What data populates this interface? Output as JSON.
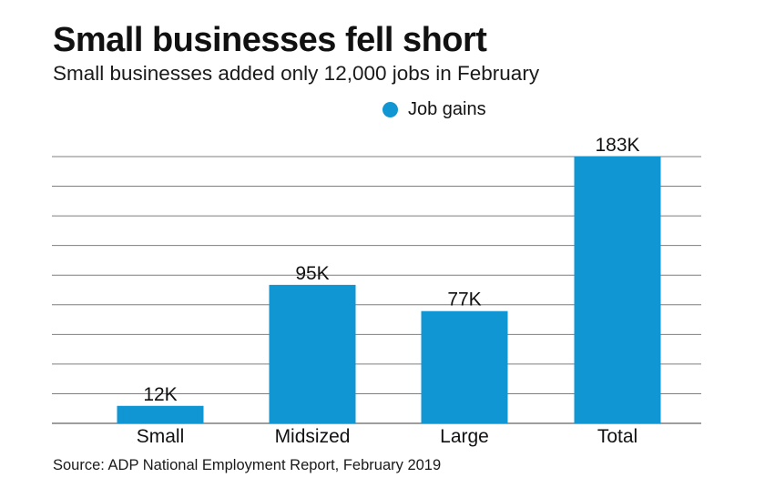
{
  "title": "Small businesses fell short",
  "subtitle": "Small businesses added only 12,000 jobs in February",
  "source": "Source: ADP National Employment Report, February 2019",
  "colors": {
    "bar": "#0f96d3",
    "grid": "#7f7f7f",
    "text": "#111111"
  },
  "chart_data": {
    "type": "bar",
    "categories": [
      "Small",
      "Midsized",
      "Large",
      "Total"
    ],
    "series": [
      {
        "name": "Job gains",
        "values": [
          12,
          95,
          77,
          183
        ],
        "labels": [
          "12K",
          "95K",
          "77K",
          "183K"
        ]
      }
    ],
    "ylim": [
      0,
      183
    ],
    "grid": true,
    "gridline_count": 9,
    "legend_position": "top-right"
  }
}
